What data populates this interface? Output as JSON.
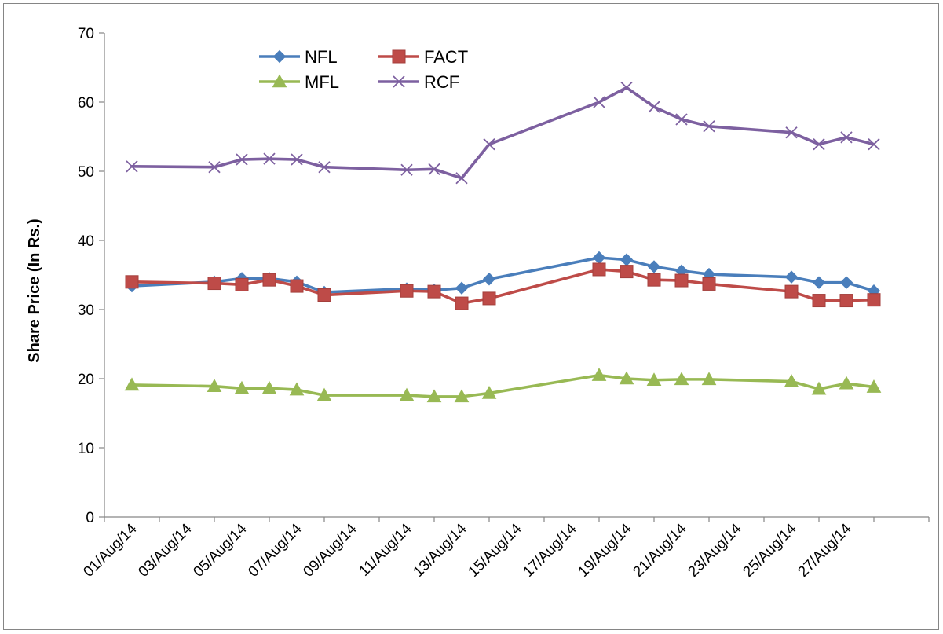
{
  "chart_data": {
    "type": "line",
    "title": "",
    "xlabel": "",
    "ylabel": "Share Price (In Rs.)",
    "ylim": [
      0,
      70
    ],
    "yticks": [
      0,
      10,
      20,
      30,
      40,
      50,
      60,
      70
    ],
    "xlim": [
      "2014-07-31",
      "2014-08-30"
    ],
    "xtick_labels": [
      "01/Aug/14",
      "03/Aug/14",
      "05/Aug/14",
      "07/Aug/14",
      "09/Aug/14",
      "11/Aug/14",
      "13/Aug/14",
      "15/Aug/14",
      "17/Aug/14",
      "19/Aug/14",
      "21/Aug/14",
      "23/Aug/14",
      "25/Aug/14",
      "27/Aug/14"
    ],
    "grid": false,
    "legend": "top-left",
    "x": [
      "2014-08-01",
      "2014-08-04",
      "2014-08-05",
      "2014-08-06",
      "2014-08-07",
      "2014-08-08",
      "2014-08-11",
      "2014-08-12",
      "2014-08-13",
      "2014-08-14",
      "2014-08-18",
      "2014-08-19",
      "2014-08-20",
      "2014-08-21",
      "2014-08-22",
      "2014-08-25",
      "2014-08-26",
      "2014-08-27",
      "2014-08-28"
    ],
    "series": [
      {
        "name": "NFL",
        "color": "#4a7ebb",
        "marker": "diamond",
        "values": [
          33.4,
          34.0,
          34.5,
          34.5,
          34.0,
          32.5,
          33.0,
          32.8,
          33.1,
          34.4,
          37.5,
          37.2,
          36.2,
          35.6,
          35.1,
          34.7,
          33.9,
          33.9,
          32.7
        ]
      },
      {
        "name": "FACT",
        "color": "#be4b48",
        "marker": "square",
        "values": [
          34.0,
          33.8,
          33.6,
          34.3,
          33.4,
          32.1,
          32.7,
          32.6,
          30.9,
          31.6,
          35.8,
          35.5,
          34.3,
          34.2,
          33.7,
          32.6,
          31.3,
          31.3,
          31.4
        ]
      },
      {
        "name": "MFL",
        "color": "#98b954",
        "marker": "triangle",
        "values": [
          19.1,
          18.9,
          18.6,
          18.6,
          18.4,
          17.6,
          17.6,
          17.4,
          17.4,
          17.9,
          20.5,
          20.0,
          19.8,
          19.9,
          19.9,
          19.6,
          18.5,
          19.3,
          18.8
        ]
      },
      {
        "name": "RCF",
        "color": "#7d60a0",
        "marker": "x",
        "values": [
          50.7,
          50.6,
          51.7,
          51.8,
          51.7,
          50.6,
          50.2,
          50.3,
          49.0,
          53.9,
          60.0,
          62.1,
          59.3,
          57.5,
          56.5,
          55.6,
          53.9,
          54.9,
          53.9
        ]
      }
    ]
  }
}
